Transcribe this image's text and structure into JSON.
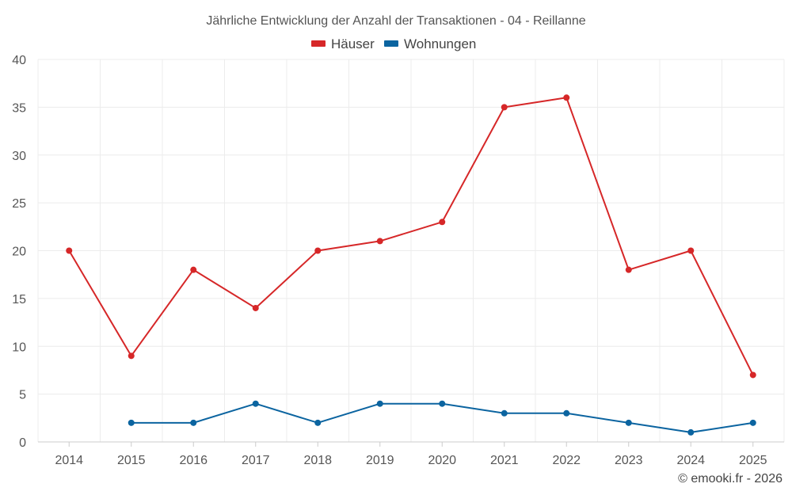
{
  "chart_data": {
    "type": "line",
    "title": "Jährliche Entwicklung der Anzahl der Transaktionen - 04 - Reillanne",
    "categories": [
      "2014",
      "2015",
      "2016",
      "2017",
      "2018",
      "2019",
      "2020",
      "2021",
      "2022",
      "2023",
      "2024",
      "2025"
    ],
    "series": [
      {
        "name": "Häuser",
        "color": "#d62728",
        "values": [
          20,
          9,
          18,
          14,
          20,
          21,
          23,
          35,
          36,
          18,
          20,
          7
        ]
      },
      {
        "name": "Wohnungen",
        "color": "#0b64a0",
        "values": [
          null,
          2,
          2,
          4,
          2,
          4,
          4,
          3,
          3,
          2,
          1,
          2
        ]
      }
    ],
    "ylim": [
      0,
      40
    ],
    "yticks": [
      0,
      5,
      10,
      15,
      20,
      25,
      30,
      35,
      40
    ],
    "xlabel": "",
    "ylabel": "",
    "grid": true,
    "legend_position": "top-center"
  },
  "credit": "© emooki.fr - 2026"
}
